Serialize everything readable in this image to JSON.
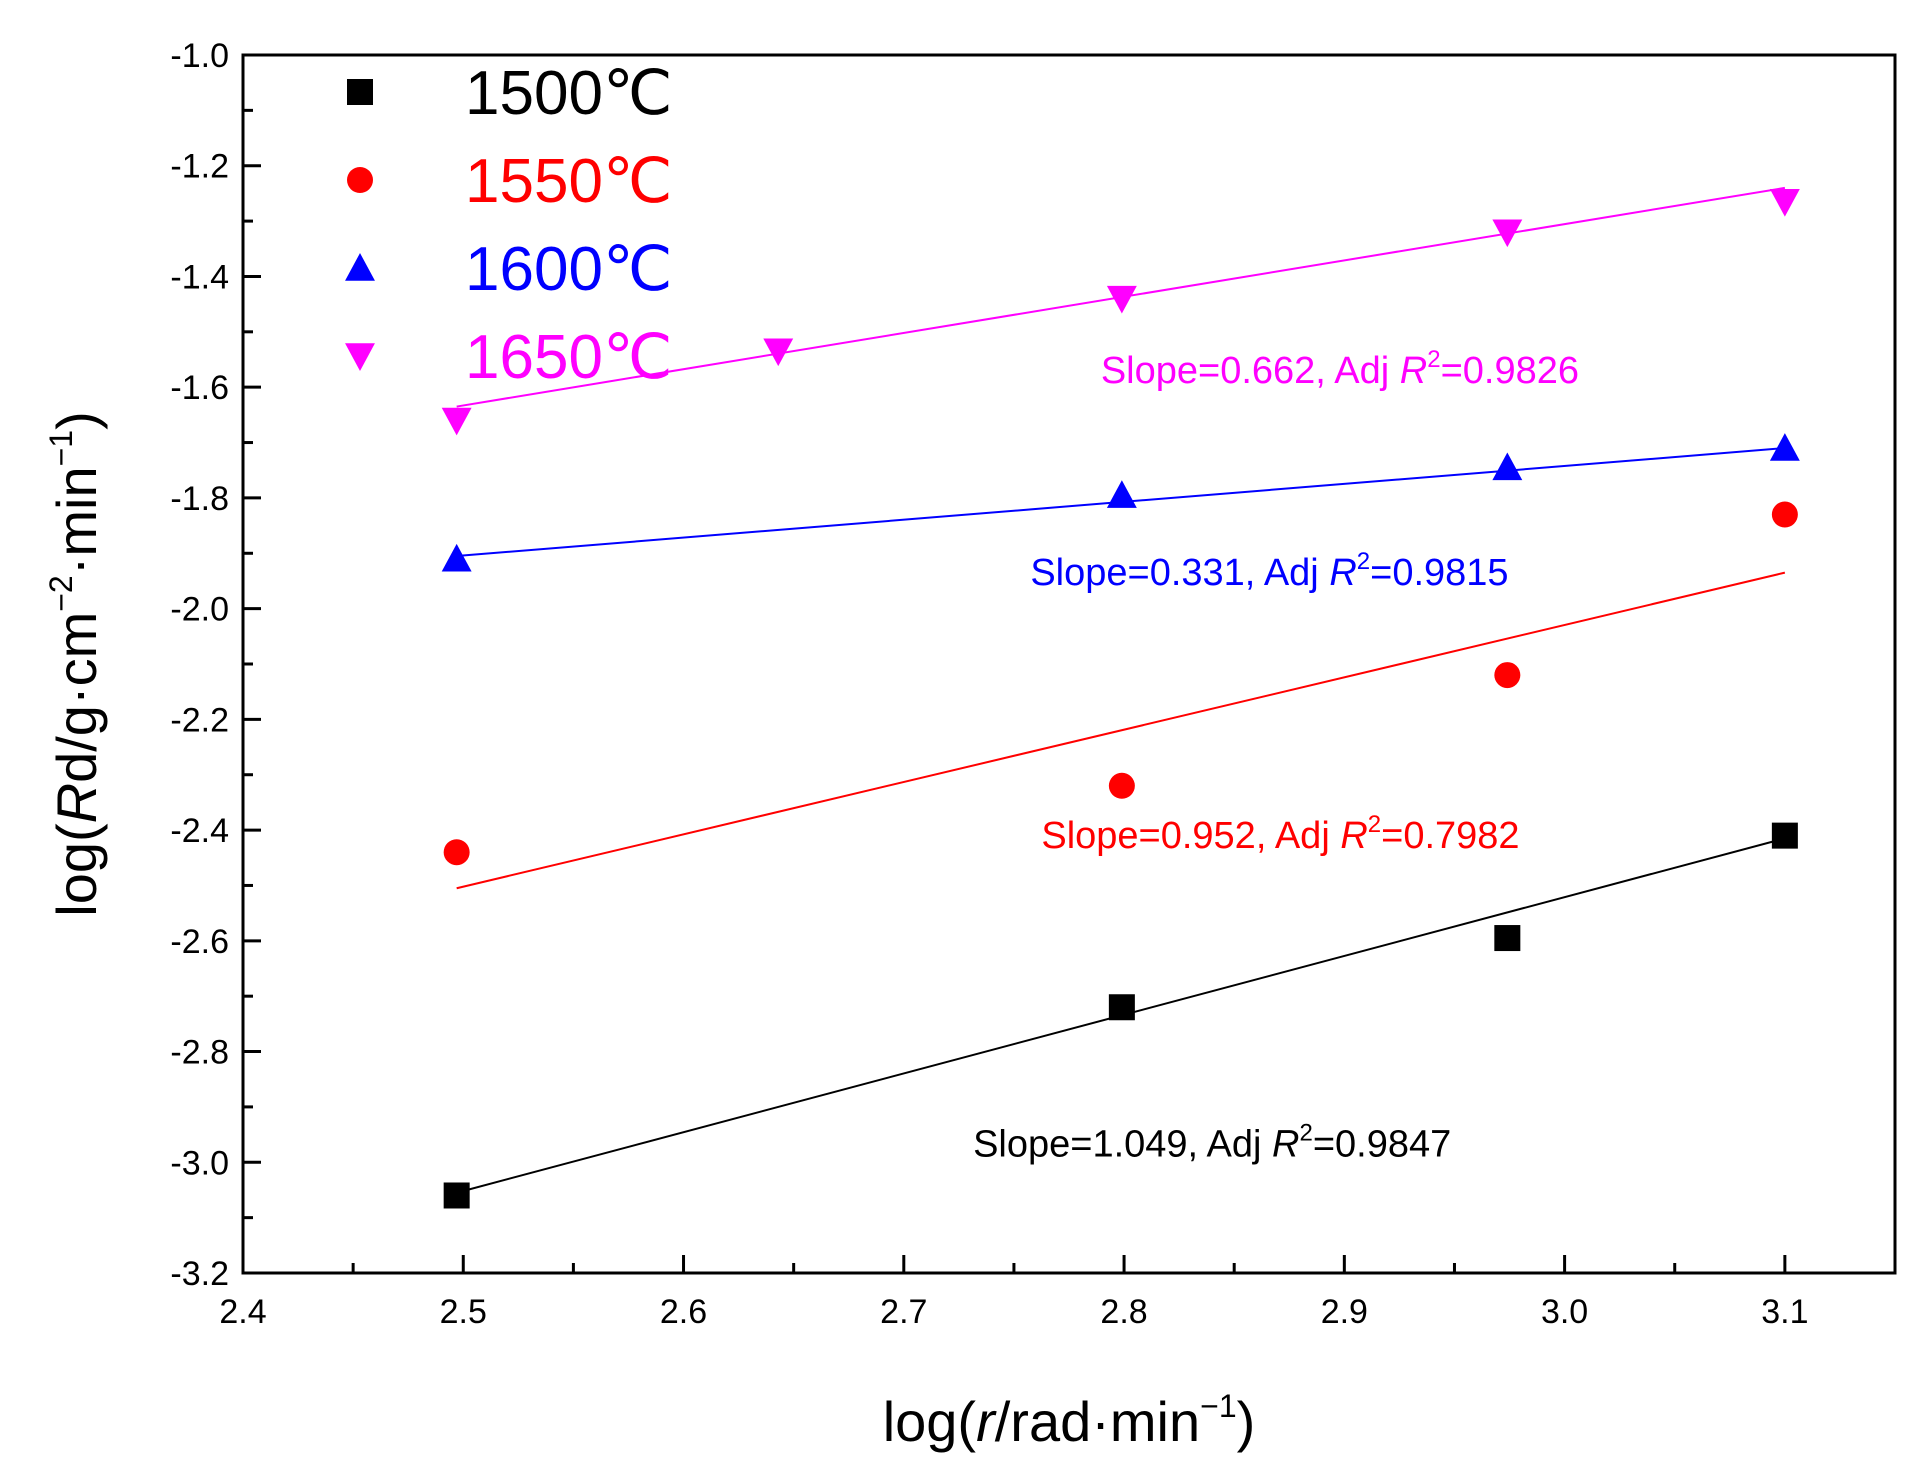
{
  "chart_data": {
    "type": "scatter",
    "xlabel": {
      "pre": "log(",
      "italic": "r",
      "post": "/rad·min",
      "sup": "−1",
      "close": ")"
    },
    "ylabel": {
      "pre": "log(",
      "italic": "R",
      "post": "d/g·cm",
      "sup1": "−2",
      "mid": "·min",
      "sup2": "−1",
      "close": ")"
    },
    "xlim": [
      2.4,
      3.15
    ],
    "ylim": [
      -3.2,
      -1.0
    ],
    "x_ticks": [
      2.4,
      2.5,
      2.6,
      2.7,
      2.8,
      2.9,
      3.0,
      3.1
    ],
    "x_tick_labels": [
      "2.4",
      "2.5",
      "2.6",
      "2.7",
      "2.8",
      "2.9",
      "3.0",
      "3.1"
    ],
    "y_ticks": [
      -3.2,
      -3.0,
      -2.8,
      -2.6,
      -2.4,
      -2.2,
      -2.0,
      -1.8,
      -1.6,
      -1.4,
      -1.2,
      -1.0
    ],
    "y_tick_labels": [
      "-3.2",
      "-3.0",
      "-2.8",
      "-2.6",
      "-2.4",
      "-2.2",
      "-2.0",
      "-1.8",
      "-1.6",
      "-1.4",
      "-1.2",
      "-1.0"
    ],
    "grid": false,
    "legend_position": "top-left",
    "series": [
      {
        "name": "1500℃",
        "color": "#000000",
        "marker": "square",
        "x": [
          2.497,
          2.799,
          2.974,
          3.1
        ],
        "y": [
          -3.06,
          -2.72,
          -2.595,
          -2.41
        ],
        "fit": {
          "x": [
            2.497,
            3.1
          ],
          "y": [
            -3.055,
            -2.415
          ]
        },
        "annotation": {
          "pre": "Slope=1.049, Adj ",
          "r": "R",
          "sup": "2",
          "post": "=0.9847"
        },
        "annotation_pos": {
          "x": 2.84,
          "y": -2.99
        }
      },
      {
        "name": "1550℃",
        "color": "#ff0000",
        "marker": "circle",
        "x": [
          2.497,
          2.799,
          2.974,
          3.1
        ],
        "y": [
          -2.44,
          -2.32,
          -2.12,
          -1.83
        ],
        "fit": {
          "x": [
            2.497,
            3.1
          ],
          "y": [
            -2.505,
            -1.935
          ]
        },
        "annotation": {
          "pre": "Slope=0.952, Adj ",
          "r": "R",
          "sup": "2",
          "post": "=0.7982"
        },
        "annotation_pos": {
          "x": 2.871,
          "y": -2.432
        }
      },
      {
        "name": "1600℃",
        "color": "#0000ff",
        "marker": "triangle",
        "x": [
          2.497,
          2.799,
          2.974,
          3.1
        ],
        "y": [
          -1.91,
          -1.795,
          -1.745,
          -1.71
        ],
        "fit": {
          "x": [
            2.497,
            3.1
          ],
          "y": [
            -1.905,
            -1.71
          ]
        },
        "annotation": {
          "pre": "Slope=0.331, Adj ",
          "r": "R",
          "sup": "2",
          "post": "=0.9815"
        },
        "annotation_pos": {
          "x": 2.866,
          "y": -1.957
        }
      },
      {
        "name": "1650℃",
        "color": "#ff00ff",
        "marker": "triangle-down",
        "x": [
          2.497,
          2.643,
          2.799,
          2.974,
          3.1
        ],
        "y": [
          -1.66,
          -1.535,
          -1.44,
          -1.32,
          -1.265
        ],
        "fit": {
          "x": [
            2.497,
            3.1
          ],
          "y": [
            -1.635,
            -1.24
          ]
        },
        "annotation": {
          "pre": "Slope=0.662, Adj ",
          "r": "R",
          "sup": "2",
          "post": "=0.9826"
        },
        "annotation_pos": {
          "x": 2.898,
          "y": -1.592
        }
      }
    ]
  }
}
